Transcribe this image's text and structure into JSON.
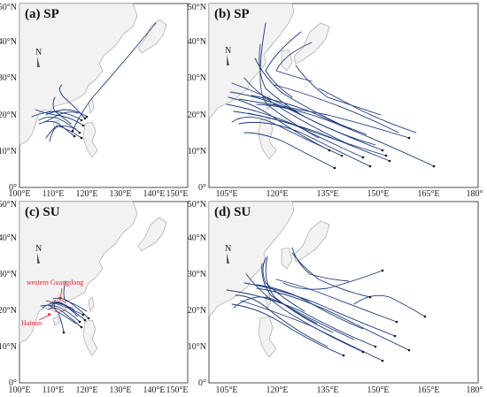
{
  "figure": {
    "panels": [
      {
        "id": "a",
        "title": "(a) SP",
        "x_ticks": [
          "100°E",
          "110°E",
          "120°E",
          "130°E",
          "140°E",
          "150°E"
        ],
        "y_ticks": [
          "0°",
          "10°N",
          "20°N",
          "30°N",
          "40°N",
          "50°N"
        ],
        "lon_range": [
          100,
          150
        ],
        "lat_range": [
          0,
          50
        ],
        "annotations": []
      },
      {
        "id": "b",
        "title": "(b) SP",
        "x_ticks": [
          "105°E",
          "120°E",
          "135°E",
          "150°E",
          "165°E",
          "180°"
        ],
        "y_ticks": [
          "0°",
          "10°N",
          "20°N",
          "30°N",
          "40°N",
          "50°N"
        ],
        "lon_range": [
          100,
          180
        ],
        "lat_range": [
          0,
          50
        ],
        "annotations": []
      },
      {
        "id": "c",
        "title": "(c) SU",
        "x_ticks": [
          "100°E",
          "110°E",
          "120°E",
          "130°E",
          "140°E",
          "150°E"
        ],
        "y_ticks": [
          "0°",
          "10°N",
          "20°N",
          "30°N",
          "40°N",
          "50°N"
        ],
        "lon_range": [
          100,
          150
        ],
        "lat_range": [
          0,
          50
        ],
        "annotations": [
          "western Guangdong",
          "Hainan"
        ]
      },
      {
        "id": "d",
        "title": "(d) SU",
        "x_ticks": [
          "105°E",
          "120°E",
          "135°E",
          "150°E",
          "165°E",
          "180°"
        ],
        "y_ticks": [
          "0°",
          "10°N",
          "20°N",
          "30°N",
          "40°N",
          "50°N"
        ],
        "lon_range": [
          100,
          180
        ],
        "lat_range": [
          0,
          50
        ],
        "annotations": []
      }
    ],
    "north_arrow_label": "N",
    "colors": {
      "track": "#1d3a7a",
      "land": "#f2f2f2",
      "coast": "#9a9a9a",
      "annotation": "#e02020"
    }
  }
}
